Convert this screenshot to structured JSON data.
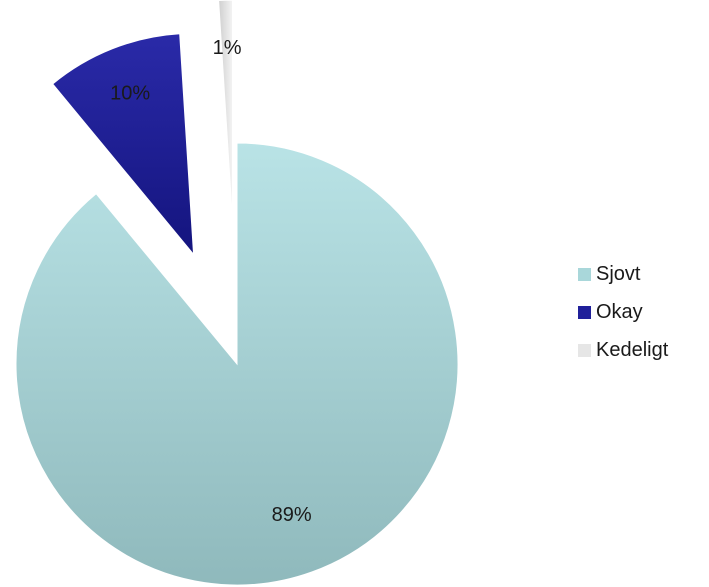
{
  "chart_data": {
    "type": "pie",
    "exploded": true,
    "categories": [
      "Sjovt",
      "Okay",
      "Kedeligt"
    ],
    "values": [
      89,
      10,
      1
    ],
    "labels": [
      "89%",
      "10%",
      "1%"
    ],
    "colors": [
      "#a9d7da",
      "#20209a",
      "#e6e6e6"
    ],
    "legend": {
      "position": "right",
      "entries": [
        "Sjovt",
        "Okay",
        "Kedeligt"
      ]
    }
  }
}
